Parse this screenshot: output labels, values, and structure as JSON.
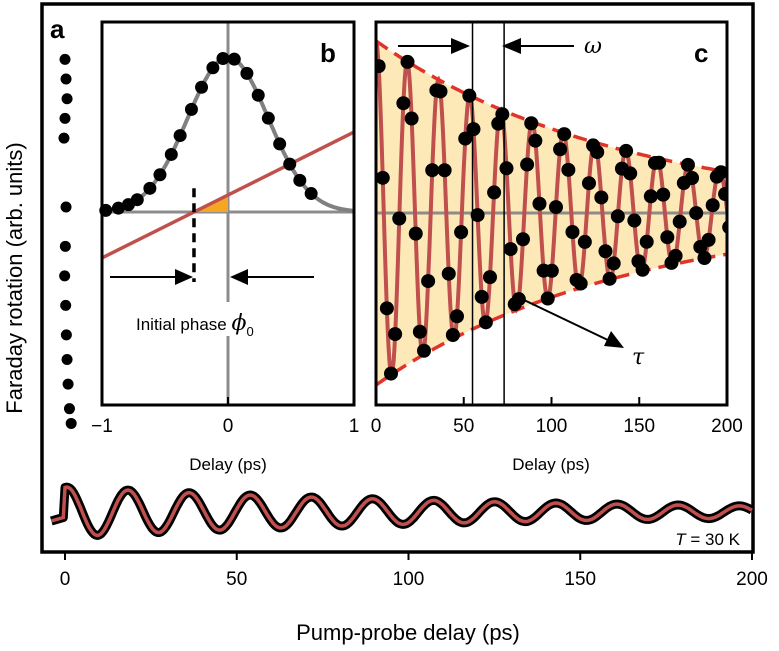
{
  "chart_data": [
    {
      "id": "a",
      "type": "line",
      "panel_label": "a",
      "xlabel": "Pump-probe delay (ps)",
      "ylabel": "Faraday rotation (arb. units)",
      "xlim": [
        -5,
        200
      ],
      "xticks": [
        "0",
        "50",
        "100",
        "150",
        "200"
      ],
      "xtick_values": [
        0,
        50,
        100,
        150,
        200
      ],
      "annotation_T_italic": "T",
      "annotation_T_value": " = 30 K",
      "fit_model": {
        "amplitude": 0.25,
        "omega_rad_per_ps": 0.353,
        "tau_ps": 140,
        "phase": -0.2
      },
      "colors": {
        "data": "#000000",
        "fit": "#c0504d"
      },
      "early_points": [
        {
          "x": 0.0,
          "y": 0.92
        },
        {
          "x": 0.3,
          "y": 0.88
        },
        {
          "x": 0.6,
          "y": 0.84
        },
        {
          "x": 0.0,
          "y": 0.8
        },
        {
          "x": -0.3,
          "y": 0.76
        },
        {
          "x": 0.3,
          "y": 0.62
        },
        {
          "x": 0.1,
          "y": 0.54
        },
        {
          "x": -0.1,
          "y": 0.48
        },
        {
          "x": 0.2,
          "y": 0.42
        },
        {
          "x": 0.4,
          "y": 0.36
        },
        {
          "x": 0.6,
          "y": 0.31
        },
        {
          "x": 0.9,
          "y": 0.26
        },
        {
          "x": 1.3,
          "y": 0.21
        },
        {
          "x": 1.8,
          "y": 0.18
        }
      ]
    },
    {
      "id": "b",
      "type": "scatter",
      "panel_label": "b",
      "xlabel": "Delay (ps)",
      "xlim": [
        -1,
        1
      ],
      "ylim": [
        -0.2,
        1.0
      ],
      "xticks": [
        "−1",
        "0",
        "1"
      ],
      "xtick_values": [
        -1,
        0,
        1
      ],
      "annotation_phase": "Initial phase ",
      "annotation_phi": "ϕ",
      "annotation_phi_sub": "0",
      "initial_phase_x": -0.27,
      "gaussian": {
        "center": 0.0,
        "sigma": 0.32,
        "amplitude": 0.91,
        "offset": 0.0
      },
      "line": {
        "slope": 0.37,
        "intercept": 0.1
      },
      "points_x": [
        -0.97,
        -0.87,
        -0.79,
        -0.72,
        -0.62,
        -0.54,
        -0.45,
        -0.38,
        -0.29,
        -0.21,
        -0.12,
        -0.04,
        0.05,
        0.15,
        0.24,
        0.32,
        0.41,
        0.49,
        0.57,
        0.66
      ],
      "colors": {
        "gaussian": "#808080",
        "line": "#c0504d",
        "points": "#000000",
        "triangle": "#f5a623",
        "axis": "#8c8c8c"
      }
    },
    {
      "id": "c",
      "type": "line",
      "panel_label": "c",
      "xlabel": "Delay (ps)",
      "xlim": [
        0,
        200
      ],
      "xticks": [
        "0",
        "50",
        "100",
        "150",
        "200"
      ],
      "xtick_values": [
        0,
        50,
        100,
        150,
        200
      ],
      "omega_label": "ω",
      "tau_label": "τ",
      "period_markers_x": [
        55,
        73
      ],
      "fit_model": {
        "amplitude": 1.0,
        "omega_rad_per_ps": 0.353,
        "tau_ps": 140,
        "phase": 0.0
      },
      "colors": {
        "envelope_fill": "#fde9b8",
        "envelope_line": "#e0342b",
        "fit": "#c0504d",
        "points": "#000000"
      }
    }
  ]
}
